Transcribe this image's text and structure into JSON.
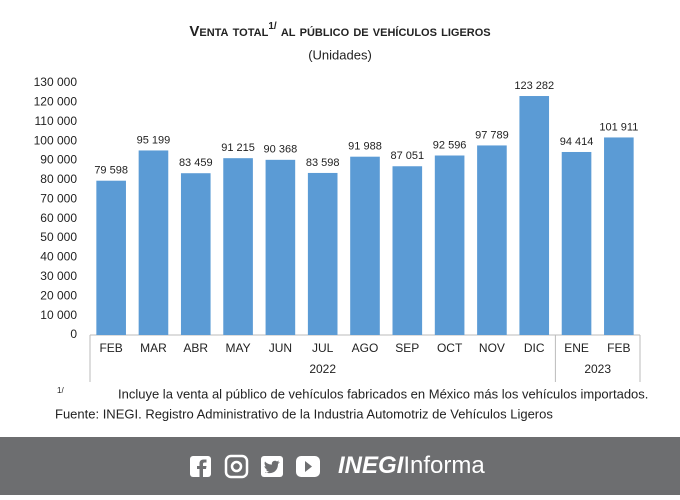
{
  "chart_data": {
    "type": "bar",
    "title": "Venta total",
    "title_superscript": "1/",
    "title_rest": " al público de vehículos ligeros",
    "subtitle": "(Unidades)",
    "categories": [
      "FEB",
      "MAR",
      "ABR",
      "MAY",
      "JUN",
      "JUL",
      "AGO",
      "SEP",
      "OCT",
      "NOV",
      "DIC",
      "ENE",
      "FEB"
    ],
    "year_labels": [
      "2022",
      "2023"
    ],
    "values": [
      79598,
      95199,
      83459,
      91215,
      90368,
      83598,
      91988,
      87051,
      92596,
      97789,
      123282,
      94414,
      101911
    ],
    "value_labels": [
      "79 598",
      "95 199",
      "83 459",
      "91 215",
      "90 368",
      "83 598",
      "91 988",
      "87 051",
      "92 596",
      "97 789",
      "123 282",
      "94 414",
      "101 911"
    ],
    "color": "#5b9bd5",
    "ylim": [
      0,
      130000
    ],
    "yticks": [
      0,
      {
        "value": 10000,
        "label": "10 000"
      },
      {
        "value": 20000,
        "label": "20 000"
      },
      {
        "value": 30000,
        "label": "30 000"
      },
      {
        "value": 40000,
        "label": "40 000"
      },
      {
        "value": 50000,
        "label": "50 000"
      },
      {
        "value": 60000,
        "label": "60 000"
      },
      {
        "value": 70000,
        "label": "70 000"
      },
      {
        "value": 80000,
        "label": "80 000"
      },
      {
        "value": 90000,
        "label": "90 000"
      },
      {
        "value": 100000,
        "label": "100 000"
      },
      {
        "value": 110000,
        "label": "110 000"
      },
      {
        "value": 120000,
        "label": "120 000"
      },
      {
        "value": 130000,
        "label": "130 000"
      }
    ],
    "grid": false
  },
  "note": {
    "marker": "1/",
    "text": "Incluye la venta al público de vehículos fabricados en México más los vehículos importados."
  },
  "source": "Fuente: INEGI. Registro Administrativo de la Industria Automotriz de Vehículos Ligeros",
  "footer": {
    "brand": "INEGI",
    "brand_rest": "Informa"
  }
}
